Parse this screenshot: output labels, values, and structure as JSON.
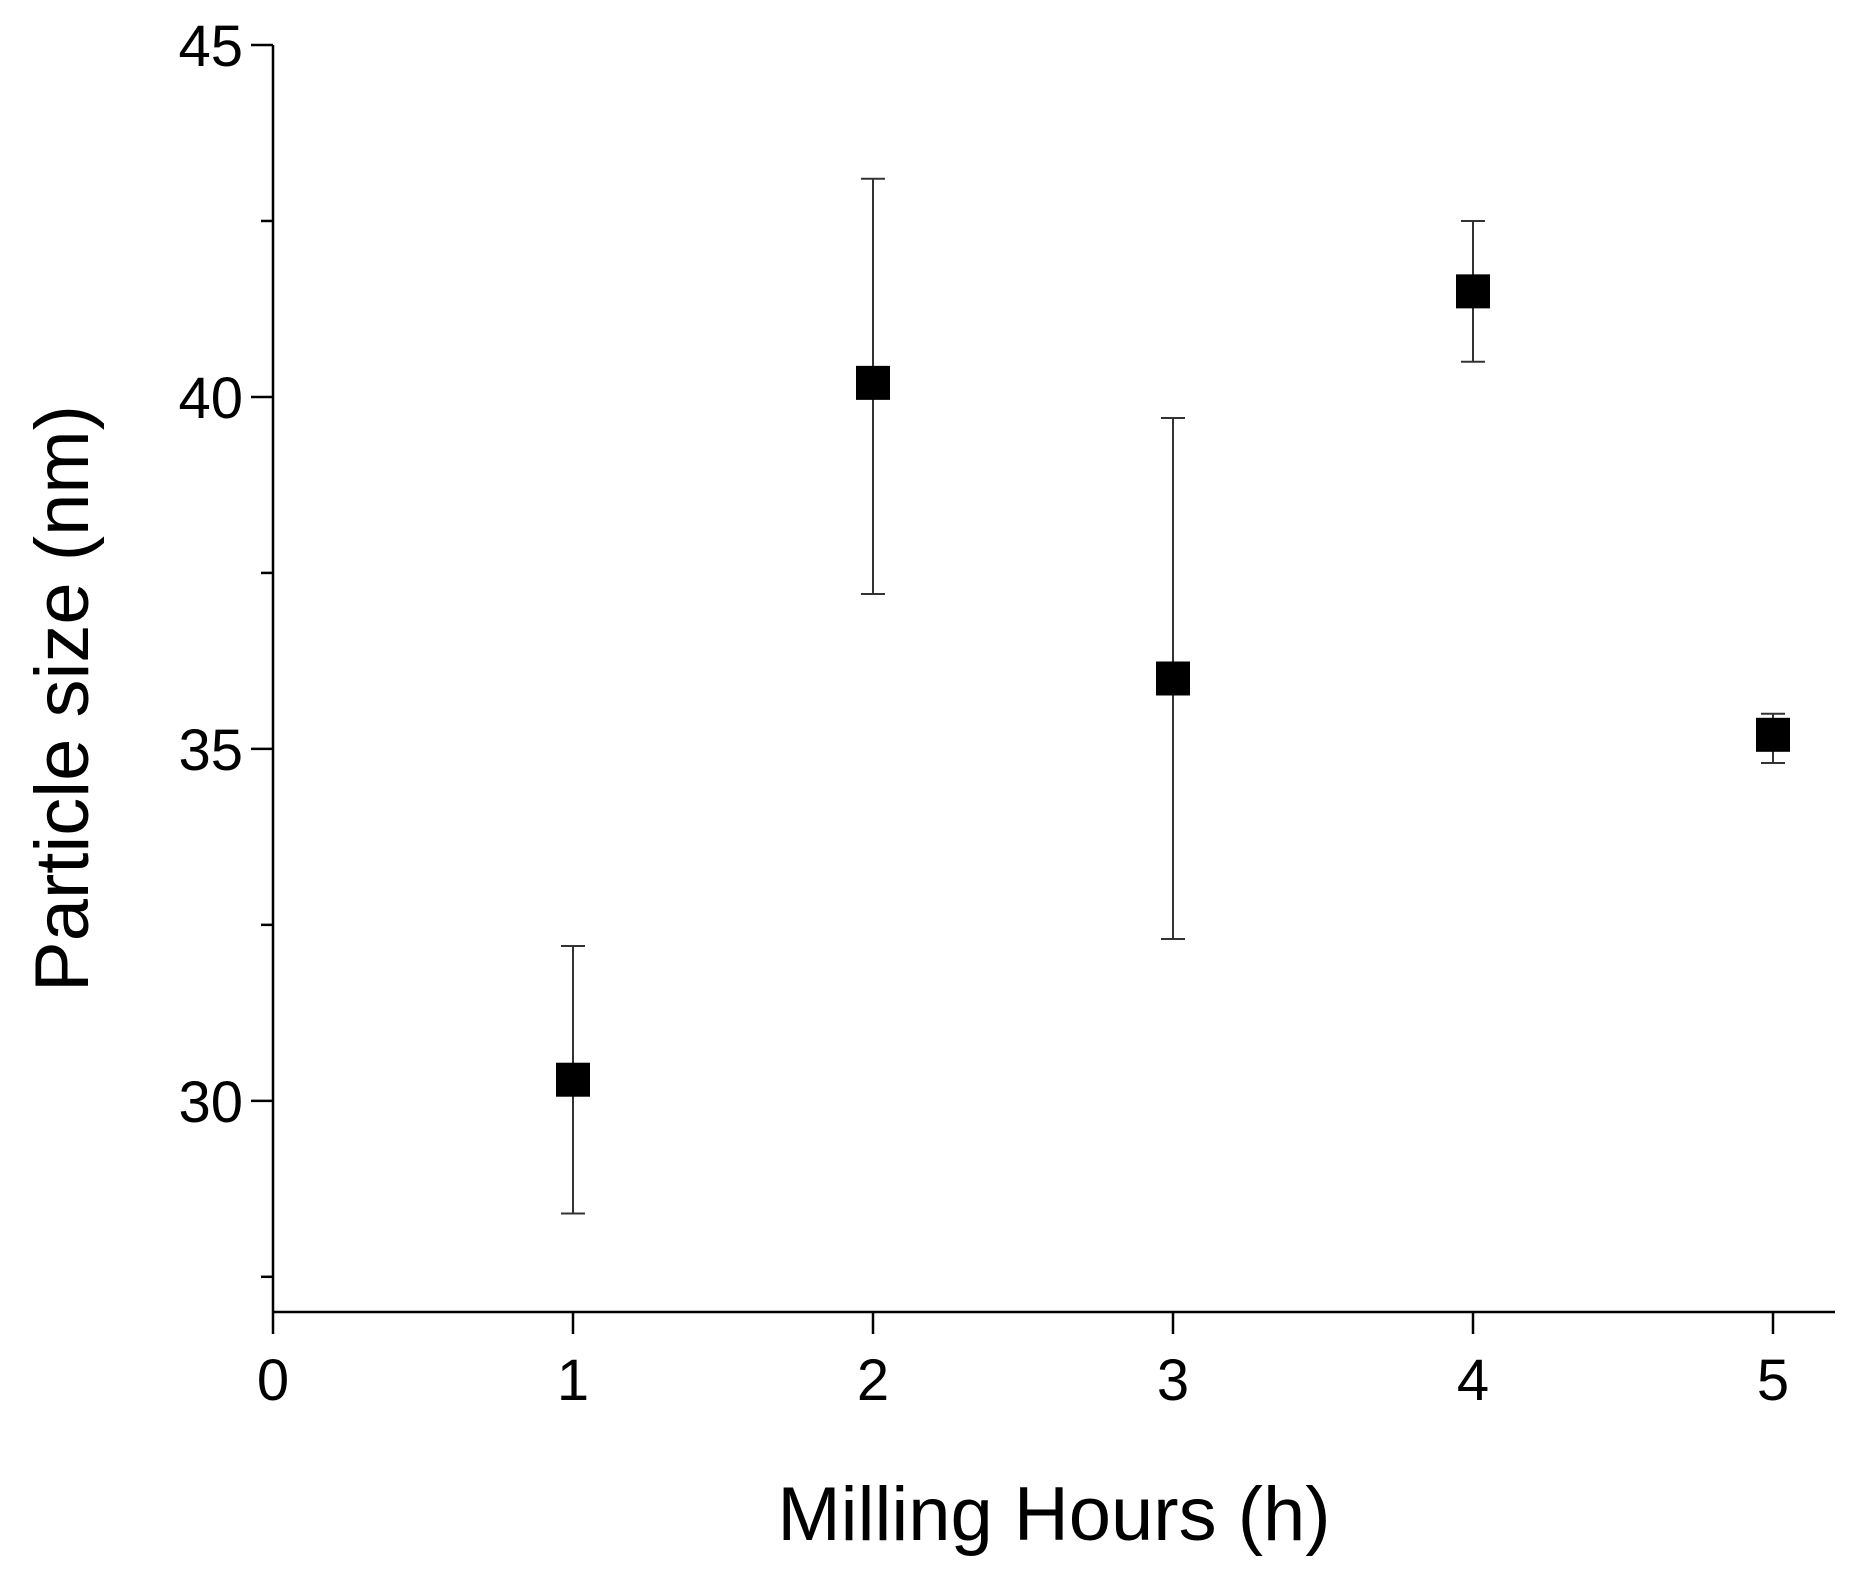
{
  "chart_data": {
    "type": "scatter",
    "title": "",
    "xlabel": "Milling Hours (h)",
    "ylabel": "Particle size (nm)",
    "xlim": [
      0,
      5.25
    ],
    "ylim": [
      27.0,
      45.0
    ],
    "x_ticks": [
      0,
      1,
      2,
      3,
      4,
      5
    ],
    "y_ticks": [
      30,
      35,
      40,
      45
    ],
    "y_minor_ticks": [
      27.5,
      32.5,
      37.5,
      42.5
    ],
    "grid": false,
    "legend": "none",
    "marker": "square",
    "marker_color": "#000000",
    "series": [
      {
        "x": [
          1,
          2,
          3,
          4,
          5
        ],
        "y": [
          30.3,
          40.2,
          36.0,
          41.5,
          35.2
        ],
        "error_upper": [
          32.2,
          43.1,
          39.7,
          42.5,
          35.5
        ],
        "error_lower": [
          28.4,
          37.2,
          32.3,
          40.5,
          34.8
        ]
      }
    ]
  }
}
